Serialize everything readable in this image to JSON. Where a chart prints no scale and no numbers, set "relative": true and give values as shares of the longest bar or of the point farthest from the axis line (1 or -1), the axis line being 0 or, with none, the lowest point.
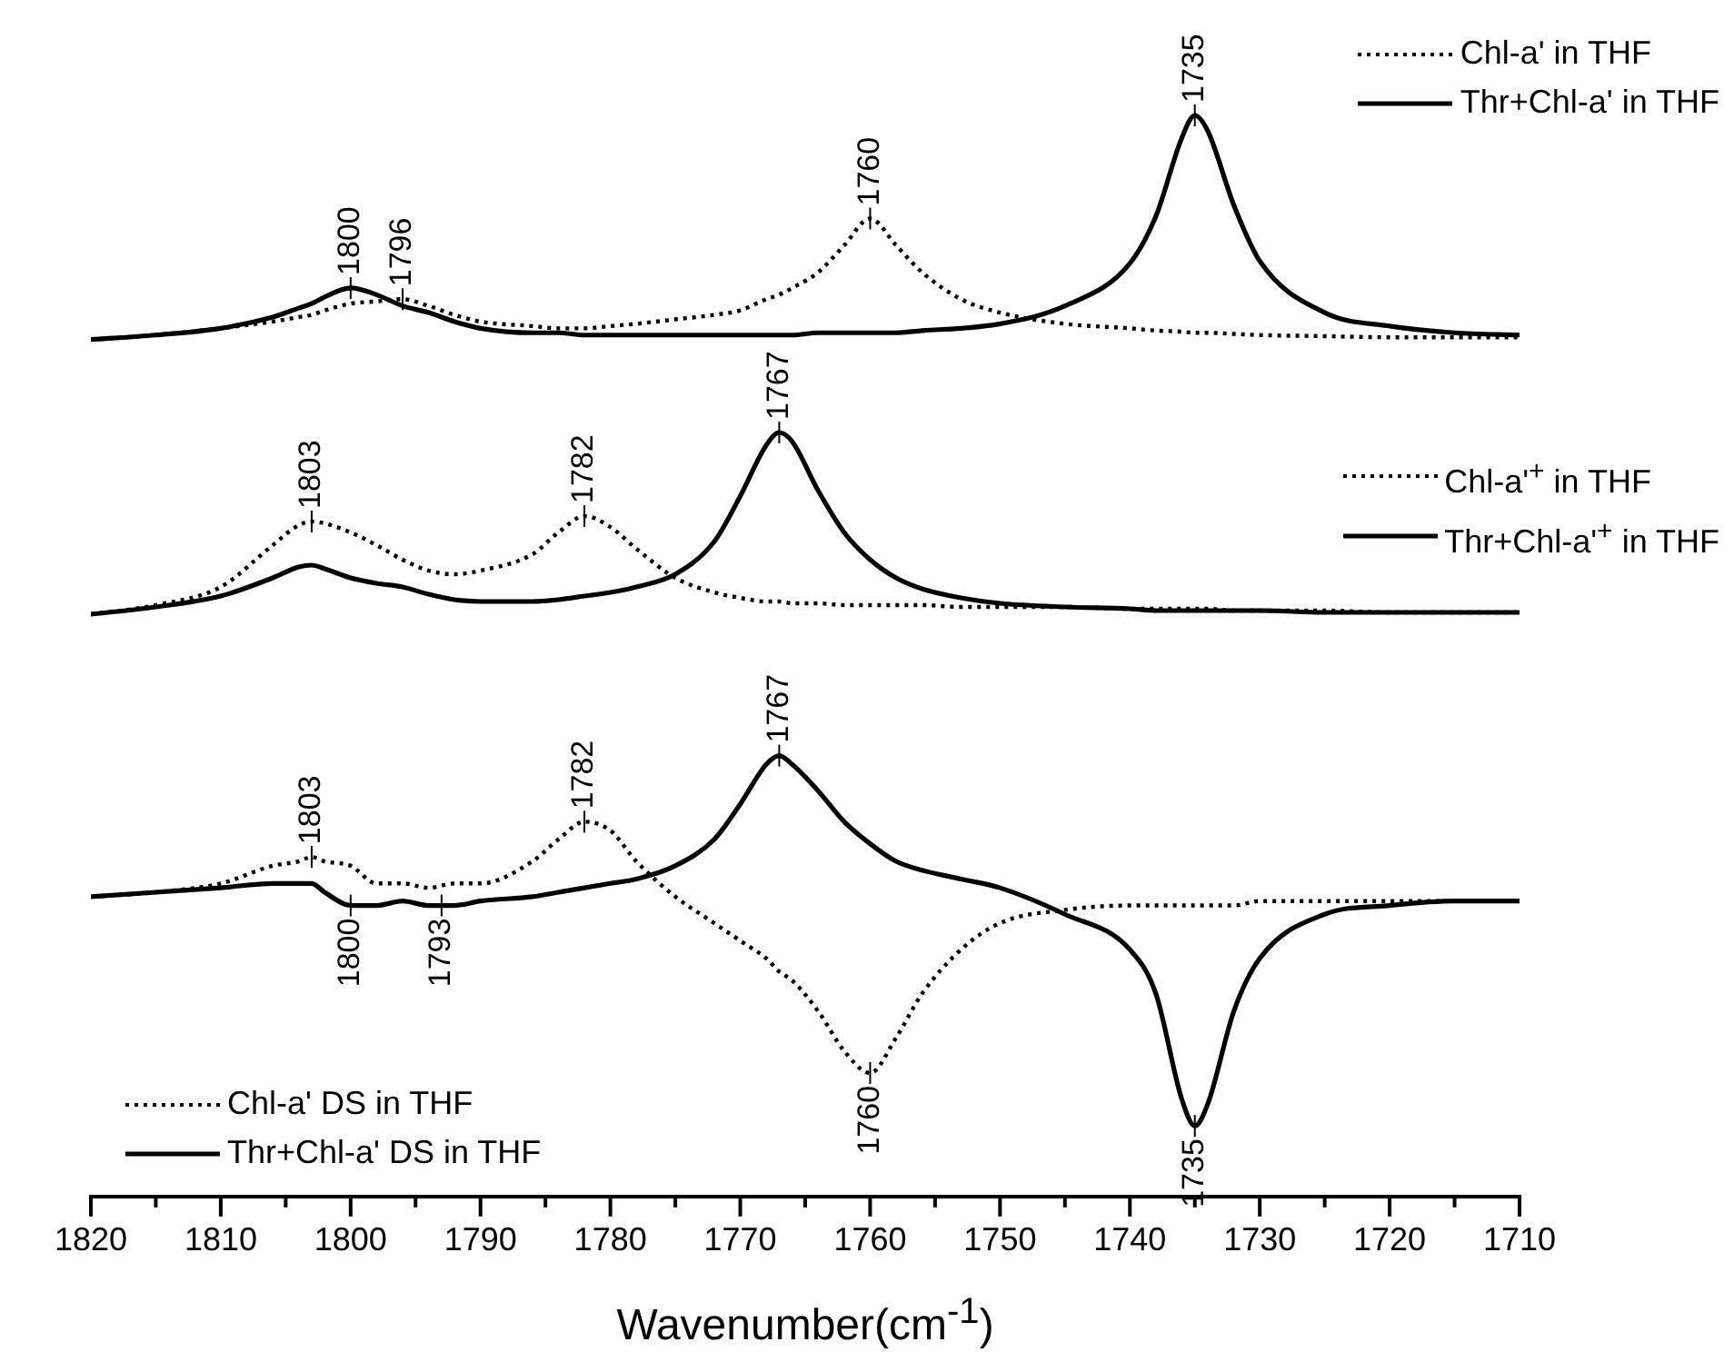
{
  "chart_data": [
    {
      "type": "line",
      "relative": true,
      "legend": "top right",
      "tick_labels": false,
      "grid": false,
      "marker": "none",
      "xlim": [
        1820,
        1710
      ],
      "x": [
        1820,
        1815,
        1810,
        1806,
        1804,
        1803,
        1802,
        1800,
        1798,
        1796,
        1794,
        1792,
        1790,
        1786,
        1784,
        1782,
        1780,
        1778,
        1775,
        1772,
        1770,
        1768,
        1767,
        1766,
        1764,
        1762,
        1760,
        1758,
        1756,
        1753,
        1750,
        1745,
        1740,
        1738,
        1736,
        1735,
        1734,
        1732,
        1730,
        1725,
        1720,
        1715,
        1710
      ],
      "series": [
        {
          "name": "Chl-a' in THF",
          "color": "#000000",
          "line_style": "dotted",
          "values": [
            0,
            0.02,
            0.05,
            0.08,
            0.1,
            0.11,
            0.13,
            0.16,
            0.17,
            0.18,
            0.15,
            0.11,
            0.08,
            0.06,
            0.05,
            0.05,
            0.06,
            0.07,
            0.09,
            0.11,
            0.13,
            0.18,
            0.2,
            0.23,
            0.3,
            0.42,
            0.54,
            0.42,
            0.3,
            0.18,
            0.12,
            0.07,
            0.05,
            0.04,
            0.035,
            0.03,
            0.03,
            0.025,
            0.02,
            0.015,
            0.01,
            0.01,
            0.01
          ]
        },
        {
          "name": "Thr+Chl-a' in THF",
          "color": "#000000",
          "line_style": "solid",
          "values": [
            0,
            0.02,
            0.05,
            0.1,
            0.14,
            0.16,
            0.19,
            0.23,
            0.2,
            0.15,
            0.12,
            0.08,
            0.05,
            0.03,
            0.03,
            0.02,
            0.02,
            0.02,
            0.02,
            0.02,
            0.02,
            0.02,
            0.02,
            0.02,
            0.03,
            0.03,
            0.03,
            0.03,
            0.04,
            0.05,
            0.07,
            0.15,
            0.34,
            0.55,
            0.9,
            1,
            0.93,
            0.6,
            0.35,
            0.12,
            0.06,
            0.03,
            0.02
          ]
        }
      ],
      "annotations": [
        {
          "text": "1800",
          "x": 1800,
          "y": 0.23
        },
        {
          "text": "1796",
          "x": 1796,
          "y": 0.18
        },
        {
          "text": "1760",
          "x": 1760,
          "y": 0.54
        },
        {
          "text": "1735",
          "x": 1735,
          "y": 1
        }
      ]
    },
    {
      "type": "line",
      "relative": true,
      "legend": "right",
      "tick_labels": false,
      "grid": false,
      "marker": "none",
      "xlim": [
        1820,
        1710
      ],
      "x": [
        1820,
        1815,
        1810,
        1806,
        1804,
        1803,
        1802,
        1800,
        1798,
        1796,
        1794,
        1792,
        1790,
        1786,
        1784,
        1782,
        1780,
        1778,
        1775,
        1772,
        1770,
        1768,
        1767,
        1766,
        1764,
        1762,
        1760,
        1758,
        1756,
        1753,
        1750,
        1745,
        1740,
        1738,
        1736,
        1735,
        1734,
        1732,
        1730,
        1725,
        1720,
        1715,
        1710
      ],
      "series": [
        {
          "name": "Chl-a'$^{+}$ in THF",
          "color": "#000000",
          "line_style": "dotted",
          "values": [
            0,
            0.05,
            0.15,
            0.38,
            0.49,
            0.51,
            0.5,
            0.45,
            0.38,
            0.3,
            0.24,
            0.22,
            0.24,
            0.33,
            0.45,
            0.54,
            0.48,
            0.36,
            0.2,
            0.12,
            0.09,
            0.07,
            0.07,
            0.06,
            0.06,
            0.05,
            0.05,
            0.05,
            0.05,
            0.04,
            0.04,
            0.04,
            0.03,
            0.03,
            0.03,
            0.03,
            0.03,
            0.02,
            0.02,
            0.02,
            0.01,
            0.01,
            0.01
          ]
        },
        {
          "name": "Thr+Chl-a'$^{+}$ in THF",
          "color": "#000000",
          "line_style": "solid",
          "values": [
            0,
            0.04,
            0.1,
            0.2,
            0.26,
            0.27,
            0.25,
            0.2,
            0.17,
            0.15,
            0.11,
            0.08,
            0.07,
            0.07,
            0.08,
            0.1,
            0.12,
            0.15,
            0.22,
            0.4,
            0.65,
            0.93,
            1,
            0.95,
            0.68,
            0.45,
            0.3,
            0.2,
            0.14,
            0.09,
            0.06,
            0.04,
            0.03,
            0.02,
            0.02,
            0.02,
            0.02,
            0.02,
            0.02,
            0.01,
            0.01,
            0.01,
            0.01
          ]
        }
      ],
      "annotations": [
        {
          "text": "1803",
          "x": 1803,
          "y": 0.51
        },
        {
          "text": "1782",
          "x": 1782,
          "y": 0.54
        },
        {
          "text": "1767",
          "x": 1767,
          "y": 1
        }
      ]
    },
    {
      "type": "line",
      "relative": true,
      "legend": "bottom left",
      "tick_labels": "x",
      "grid": false,
      "marker": "none",
      "xlim": [
        1820,
        1710
      ],
      "xticks": [
        1820,
        {
          "value": 1815,
          "label": null
        },
        1810,
        {
          "value": 1805,
          "label": null
        },
        1800,
        {
          "value": 1795,
          "label": null
        },
        1790,
        {
          "value": 1785,
          "label": null
        },
        1780,
        {
          "value": 1775,
          "label": null
        },
        1770,
        {
          "value": 1765,
          "label": null
        },
        1760,
        {
          "value": 1755,
          "label": null
        },
        1750,
        {
          "value": 1745,
          "label": null
        },
        1740,
        {
          "value": 1735,
          "label": null
        },
        1730,
        {
          "value": 1725,
          "label": null
        },
        1720,
        {
          "value": 1715,
          "label": null
        },
        1710
      ],
      "xlabel": "Wavenumber(cm$^{-1}$)",
      "x": [
        1820,
        1815,
        1810,
        1806,
        1804,
        1803,
        1802,
        1800,
        1798,
        1796,
        1794,
        1792,
        1790,
        1786,
        1784,
        1782,
        1780,
        1778,
        1775,
        1772,
        1770,
        1768,
        1767,
        1766,
        1764,
        1762,
        1760,
        1758,
        1756,
        1753,
        1750,
        1745,
        1740,
        1738,
        1736,
        1735,
        1734,
        1732,
        1730,
        1725,
        1720,
        1715,
        1710
      ],
      "series": [
        {
          "name": "Chl-a' DS in THF",
          "color": "#000000",
          "line_style": "dotted",
          "values": [
            0.68,
            0.69,
            0.71,
            0.75,
            0.76,
            0.77,
            0.76,
            0.75,
            0.71,
            0.71,
            0.7,
            0.71,
            0.71,
            0.76,
            0.81,
            0.85,
            0.83,
            0.76,
            0.68,
            0.62,
            0.58,
            0.54,
            0.51,
            0.49,
            0.42,
            0.33,
            0.28,
            0.36,
            0.46,
            0.56,
            0.62,
            0.65,
            0.66,
            0.66,
            0.66,
            0.66,
            0.66,
            0.66,
            0.67,
            0.67,
            0.67,
            0.67,
            0.67
          ]
        },
        {
          "name": "Thr+Chl-a' DS in THF",
          "color": "#000000",
          "line_style": "solid",
          "values": [
            0.68,
            0.69,
            0.7,
            0.71,
            0.71,
            0.71,
            0.69,
            0.66,
            0.66,
            0.67,
            0.66,
            0.66,
            0.67,
            0.68,
            0.69,
            0.7,
            0.71,
            0.72,
            0.75,
            0.81,
            0.89,
            0.98,
            1,
            0.98,
            0.92,
            0.85,
            0.8,
            0.76,
            0.74,
            0.72,
            0.7,
            0.64,
            0.56,
            0.46,
            0.22,
            0.16,
            0.21,
            0.42,
            0.54,
            0.64,
            0.66,
            0.67,
            0.67
          ]
        }
      ],
      "annotations": [
        {
          "text": "1803",
          "x": 1803,
          "y": 0.77
        },
        {
          "text": "1782",
          "x": 1782,
          "y": 0.85
        },
        {
          "text": "1767",
          "x": 1767,
          "y": 1
        },
        {
          "text": "1800",
          "x": 1800,
          "y": 0.66
        },
        {
          "text": "1793",
          "x": 1793,
          "y": 0.66
        },
        {
          "text": "1760",
          "x": 1760,
          "y": 0.28
        },
        {
          "text": "1735",
          "x": 1735,
          "y": 0.16
        }
      ]
    }
  ]
}
